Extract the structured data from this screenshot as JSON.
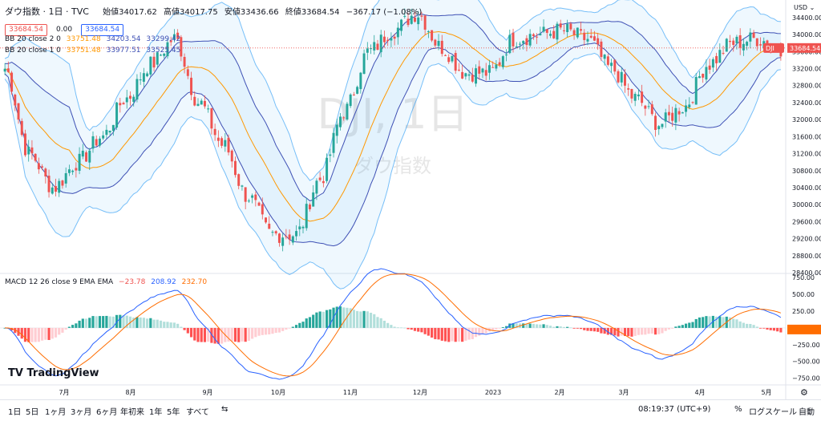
{
  "header": {
    "symbol": "ダウ指数 · 1日 · TVC",
    "open_label": "始値",
    "open": "34017.62",
    "high_label": "高値",
    "high": "34017.75",
    "low_label": "安値",
    "low": "33436.66",
    "close_label": "終値",
    "close": "33684.54",
    "change": "−367.17 (−1.08%)",
    "price_box": "33684.54",
    "spread": "0.00",
    "price_box2": "33684.54"
  },
  "indicators": {
    "bb2_label": "BB 20 close 2 0",
    "bb2_values": [
      "33751.48",
      "34203.54",
      "33299.42"
    ],
    "bb1_label": "BB 20 close 1 0",
    "bb1_values": [
      "33751.48",
      "33977.51",
      "33525.45"
    ],
    "macd_label": "MACD 12 26 close 9 EMA EMA",
    "macd_values": [
      "−23.78",
      "208.92",
      "232.70"
    ]
  },
  "watermark": {
    "main": "DJI, 1日",
    "sub": "ダウ指数"
  },
  "currency": "USD",
  "current_price_tag": {
    "symbol": "DJI",
    "price": "33684.54"
  },
  "colors": {
    "up": "#26a69a",
    "down": "#ef5350",
    "ma": "#ff9800",
    "band": "#3f51b5",
    "macd": "#2962ff",
    "signal": "#ff6d00"
  },
  "toolbar": {
    "ranges": [
      "1日",
      "5日",
      "1ヶ月",
      "3ヶ月",
      "6ヶ月",
      "年初来",
      "1年",
      "5年",
      "すべて"
    ],
    "time": "08:19:37 (UTC+9)",
    "percent": "%",
    "log": "ログスケール",
    "auto": "自動",
    "brand": "TradingView"
  },
  "chart_data": {
    "type": "line",
    "price_axis_ticks": [
      "34400.00",
      "34000.00",
      "33600.00",
      "33200.00",
      "32800.00",
      "32400.00",
      "32000.00",
      "31600.00",
      "31200.00",
      "30800.00",
      "30400.00",
      "30000.00",
      "29600.00",
      "29200.00",
      "28800.00",
      "28400.00"
    ],
    "macd_axis_ticks": [
      "750.00",
      "500.00",
      "250.00",
      "0.00",
      "−250.00",
      "−500.00",
      "−750.00"
    ],
    "x_ticks": [
      "7月",
      "8月",
      "9月",
      "10月",
      "11月",
      "12月",
      "2023",
      "2月",
      "3月",
      "4月",
      "5月"
    ],
    "price_ylim": [
      28400,
      34700
    ],
    "macd_ylim": [
      -850,
      800
    ],
    "series": [
      {
        "name": "DJI",
        "type": "line",
        "x": [
          "Jun15",
          "Jun25",
          "Jul5",
          "Jul15",
          "Jul25",
          "Aug5",
          "Aug15",
          "Aug25",
          "Sep5",
          "Sep15",
          "Sep25",
          "Oct5",
          "Oct15",
          "Oct25",
          "Nov5",
          "Nov15",
          "Nov25",
          "Dec5",
          "Dec15",
          "Dec25",
          "Jan5",
          "Jan15",
          "Jan25",
          "Feb5",
          "Feb15",
          "Feb25",
          "Mar5",
          "Mar15",
          "Mar25",
          "Apr5",
          "Apr15",
          "Apr25",
          "May3"
        ],
        "values": [
          33200,
          31200,
          30400,
          31000,
          31600,
          32500,
          33300,
          33900,
          32400,
          31400,
          30200,
          29300,
          29300,
          30600,
          32200,
          33600,
          34100,
          34500,
          33700,
          33100,
          33100,
          33900,
          34000,
          34100,
          33900,
          33200,
          32500,
          31900,
          32300,
          33300,
          33800,
          33900,
          33684
        ]
      }
    ]
  }
}
